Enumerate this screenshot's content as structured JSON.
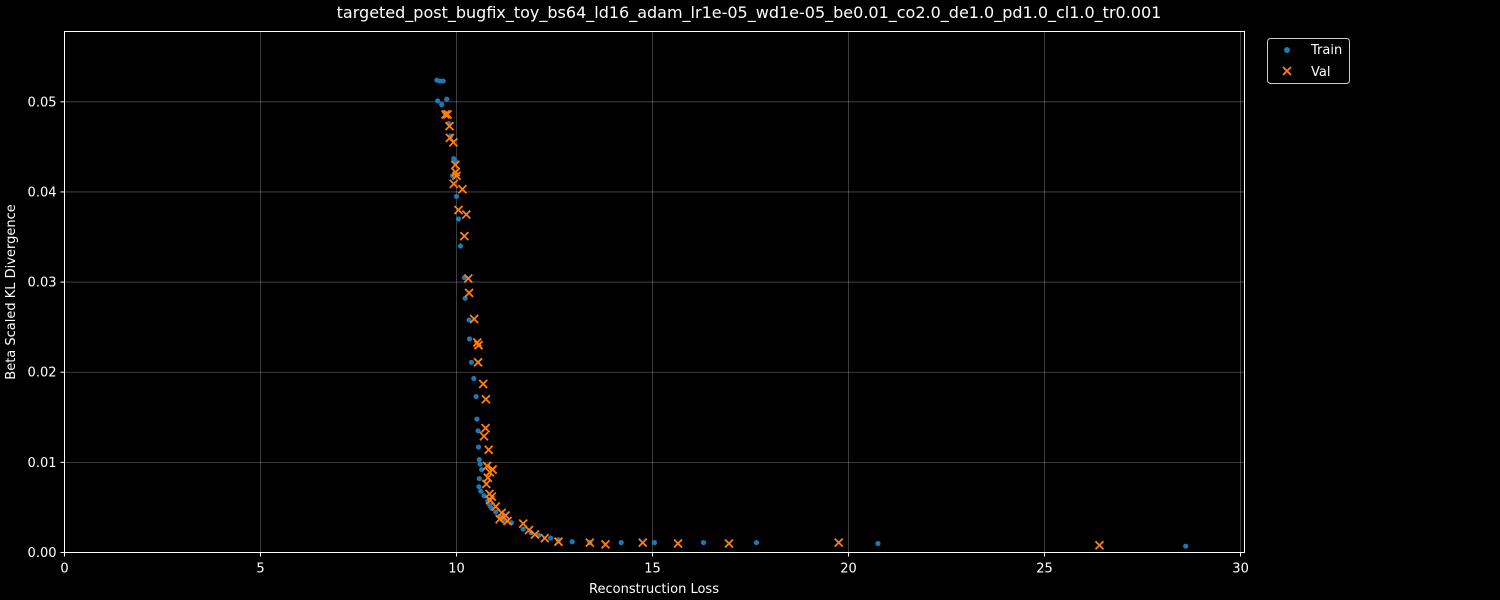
{
  "chart_data": {
    "type": "scatter",
    "title": "targeted_post_bugfix_toy_bs64_ld16_adam_lr1e-05_wd1e-05_be0.01_co2.0_de1.0_pd1.0_cl1.0_tr0.001",
    "xlabel": "Reconstruction Loss",
    "ylabel": "Beta Scaled KL Divergence",
    "xlim": [
      0,
      30.1
    ],
    "ylim": [
      0,
      0.0578
    ],
    "xticks": [
      0,
      5,
      10,
      15,
      20,
      25,
      30
    ],
    "yticks": [
      0.0,
      0.01,
      0.02,
      0.03,
      0.04,
      0.05
    ],
    "ytick_labels": [
      "0.00",
      "0.01",
      "0.02",
      "0.03",
      "0.04",
      "0.05"
    ],
    "grid": true,
    "legend_position": "outside-top-right",
    "background": "#000000",
    "series": [
      {
        "name": "Train",
        "marker": "circle",
        "color": "#1f77b4",
        "points": [
          [
            9.5,
            0.0524
          ],
          [
            9.58,
            0.0523
          ],
          [
            9.66,
            0.0523
          ],
          [
            9.52,
            0.0501
          ],
          [
            9.62,
            0.0497
          ],
          [
            9.75,
            0.0503
          ],
          [
            9.7,
            0.0488
          ],
          [
            9.8,
            0.0476
          ],
          [
            9.85,
            0.0462
          ],
          [
            9.93,
            0.0437
          ],
          [
            9.97,
            0.0434
          ],
          [
            9.9,
            0.0418
          ],
          [
            10.0,
            0.0395
          ],
          [
            10.05,
            0.037
          ],
          [
            10.1,
            0.034
          ],
          [
            10.2,
            0.0305
          ],
          [
            10.22,
            0.0282
          ],
          [
            10.32,
            0.0258
          ],
          [
            10.33,
            0.0237
          ],
          [
            10.38,
            0.0211
          ],
          [
            10.44,
            0.0193
          ],
          [
            10.5,
            0.0173
          ],
          [
            10.52,
            0.0148
          ],
          [
            10.55,
            0.0135
          ],
          [
            10.56,
            0.0117
          ],
          [
            10.58,
            0.0103
          ],
          [
            10.6,
            0.0098
          ],
          [
            10.64,
            0.0092
          ],
          [
            10.58,
            0.0082
          ],
          [
            10.57,
            0.0073
          ],
          [
            10.62,
            0.0068
          ],
          [
            10.7,
            0.0063
          ],
          [
            10.8,
            0.0057
          ],
          [
            10.85,
            0.0052
          ],
          [
            10.9,
            0.0049
          ],
          [
            11.0,
            0.0045
          ],
          [
            11.1,
            0.004
          ],
          [
            11.2,
            0.0036
          ],
          [
            11.4,
            0.0033
          ],
          [
            11.7,
            0.0026
          ],
          [
            11.9,
            0.0022
          ],
          [
            12.1,
            0.0019
          ],
          [
            12.4,
            0.0016
          ],
          [
            12.6,
            0.0014
          ],
          [
            12.95,
            0.0012
          ],
          [
            13.4,
            0.0011
          ],
          [
            14.2,
            0.0011
          ],
          [
            15.05,
            0.0011
          ],
          [
            16.3,
            0.0011
          ],
          [
            17.65,
            0.0011
          ],
          [
            20.75,
            0.001
          ],
          [
            28.6,
            0.0007
          ]
        ]
      },
      {
        "name": "Val",
        "marker": "x",
        "color": "#ff7f0e",
        "points": [
          [
            9.72,
            0.0486
          ],
          [
            9.77,
            0.0486
          ],
          [
            9.82,
            0.0473
          ],
          [
            9.83,
            0.046
          ],
          [
            9.92,
            0.0455
          ],
          [
            9.97,
            0.043
          ],
          [
            9.98,
            0.0422
          ],
          [
            10.0,
            0.0418
          ],
          [
            9.93,
            0.0409
          ],
          [
            10.15,
            0.0403
          ],
          [
            10.05,
            0.038
          ],
          [
            10.25,
            0.0375
          ],
          [
            10.2,
            0.0351
          ],
          [
            10.3,
            0.0304
          ],
          [
            10.32,
            0.0288
          ],
          [
            10.45,
            0.0259
          ],
          [
            10.53,
            0.0233
          ],
          [
            10.56,
            0.023
          ],
          [
            10.55,
            0.0211
          ],
          [
            10.68,
            0.0187
          ],
          [
            10.75,
            0.017
          ],
          [
            10.74,
            0.0138
          ],
          [
            10.7,
            0.0129
          ],
          [
            10.82,
            0.0114
          ],
          [
            10.78,
            0.0096
          ],
          [
            10.92,
            0.0092
          ],
          [
            10.85,
            0.0089
          ],
          [
            10.8,
            0.0083
          ],
          [
            10.76,
            0.0076
          ],
          [
            10.84,
            0.0065
          ],
          [
            10.9,
            0.0062
          ],
          [
            10.86,
            0.0058
          ],
          [
            11.0,
            0.0051
          ],
          [
            11.15,
            0.0044
          ],
          [
            11.25,
            0.0041
          ],
          [
            11.1,
            0.0037
          ],
          [
            11.3,
            0.0035
          ],
          [
            11.7,
            0.0032
          ],
          [
            11.85,
            0.0025
          ],
          [
            12.0,
            0.002
          ],
          [
            12.25,
            0.0016
          ],
          [
            12.6,
            0.0012
          ],
          [
            13.4,
            0.0011
          ],
          [
            13.8,
            0.0009
          ],
          [
            14.75,
            0.0011
          ],
          [
            15.65,
            0.001
          ],
          [
            16.95,
            0.001
          ],
          [
            19.75,
            0.0011
          ],
          [
            26.4,
            0.0008
          ]
        ]
      }
    ]
  }
}
